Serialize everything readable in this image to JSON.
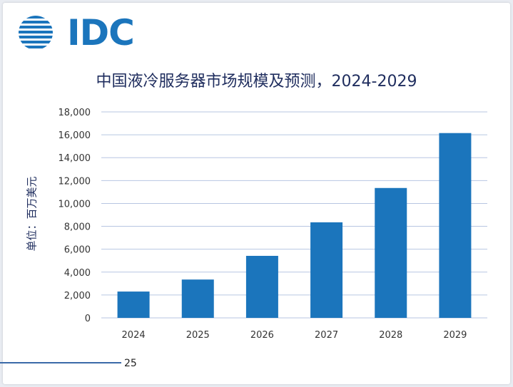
{
  "logo": {
    "text": "IDC",
    "color": "#1b75bc"
  },
  "page_number": "25",
  "chart_data": {
    "type": "bar",
    "title": "中国液冷服务器市场规模及预测，2024-2029",
    "ylabel": "单位：百万美元",
    "xlabel": "",
    "categories": [
      "2024",
      "2025",
      "2026",
      "2027",
      "2028",
      "2029"
    ],
    "values": [
      2300,
      3350,
      5420,
      8350,
      11350,
      16150
    ],
    "ylim": [
      0,
      18000
    ],
    "yticks": [
      0,
      2000,
      4000,
      6000,
      8000,
      10000,
      12000,
      14000,
      16000,
      18000
    ],
    "ytick_labels": [
      "0",
      "2,000",
      "4,000",
      "6,000",
      "8,000",
      "10,000",
      "12,000",
      "14,000",
      "16,000",
      "18,000"
    ],
    "grid": true,
    "bar_color": "#1b75bc",
    "grid_color": "#b7c6e2"
  }
}
